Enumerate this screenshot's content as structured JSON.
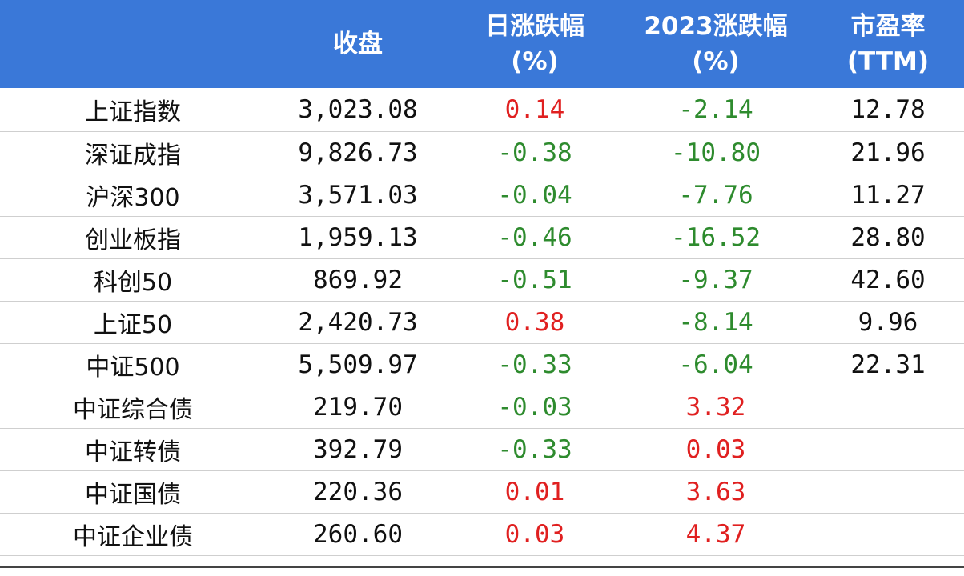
{
  "header": {
    "col1": "收盘",
    "col2_l1": "日涨跌幅",
    "col2_l2": "(%)",
    "col3_l1": "2023涨跌幅",
    "col3_l2": "(%)",
    "col4_l1": "市盈率",
    "col4_l2": "(TTM)"
  },
  "colors": {
    "header_bg": "#3a78d8",
    "up": "#e02020",
    "down": "#2e8b2e"
  },
  "rows": [
    {
      "name": "上证指数",
      "close": "3,023.08",
      "day": "0.14",
      "ytd": "-2.14",
      "pe": "12.78"
    },
    {
      "name": "深证成指",
      "close": "9,826.73",
      "day": "-0.38",
      "ytd": "-10.80",
      "pe": "21.96"
    },
    {
      "name": "沪深300",
      "close": "3,571.03",
      "day": "-0.04",
      "ytd": "-7.76",
      "pe": "11.27"
    },
    {
      "name": "创业板指",
      "close": "1,959.13",
      "day": "-0.46",
      "ytd": "-16.52",
      "pe": "28.80"
    },
    {
      "name": "科创50",
      "close": "869.92",
      "day": "-0.51",
      "ytd": "-9.37",
      "pe": "42.60"
    },
    {
      "name": "上证50",
      "close": "2,420.73",
      "day": "0.38",
      "ytd": "-8.14",
      "pe": "9.96"
    },
    {
      "name": "中证500",
      "close": "5,509.97",
      "day": "-0.33",
      "ytd": "-6.04",
      "pe": "22.31"
    },
    {
      "name": "中证综合债",
      "close": "219.70",
      "day": "-0.03",
      "ytd": "3.32",
      "pe": ""
    },
    {
      "name": "中证转债",
      "close": "392.79",
      "day": "-0.33",
      "ytd": "0.03",
      "pe": ""
    },
    {
      "name": "中证国债",
      "close": "220.36",
      "day": "0.01",
      "ytd": "3.63",
      "pe": ""
    },
    {
      "name": "中证企业债",
      "close": "260.60",
      "day": "0.03",
      "ytd": "4.37",
      "pe": ""
    }
  ]
}
